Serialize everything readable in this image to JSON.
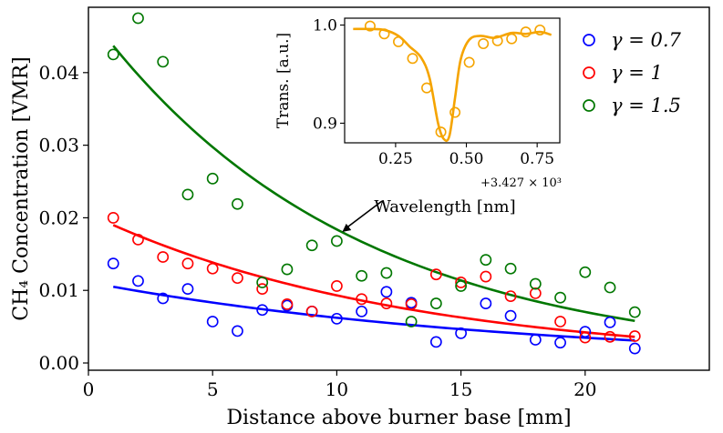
{
  "chart_data": [
    {
      "type": "scatter",
      "xlabel": "Distance above burner base [mm]",
      "ylabel": "CH₄ Concentration [VMR]",
      "xlim": [
        0,
        25
      ],
      "ylim": [
        -0.001,
        0.049
      ],
      "xticks": [
        0,
        5,
        10,
        15,
        20
      ],
      "yticks": [
        0.0,
        0.01,
        0.02,
        0.03,
        0.04
      ],
      "ytick_labels": [
        "0.00",
        "0.01",
        "0.02",
        "0.03",
        "0.04"
      ],
      "grid": false,
      "legend": "top-right",
      "series": [
        {
          "name": "γ = 0.7",
          "color": "#0000ff",
          "x": [
            1,
            2,
            3,
            4,
            5,
            6,
            7,
            8,
            9,
            10,
            11,
            12,
            13,
            14,
            15,
            16,
            17,
            18,
            19,
            20,
            21,
            22
          ],
          "values": [
            0.0137,
            0.0113,
            0.0089,
            0.0102,
            0.0057,
            0.0044,
            0.0073,
            0.0079,
            0.0071,
            0.0061,
            0.0071,
            0.0098,
            0.0083,
            0.0029,
            0.0041,
            0.0082,
            0.0065,
            0.0032,
            0.0028,
            0.0043,
            0.0056,
            0.002
          ],
          "fit_x": [
            1,
            22
          ],
          "fit_y": [
            0.0105,
            0.0031
          ]
        },
        {
          "name": "γ = 1",
          "color": "#ff0000",
          "x": [
            1,
            2,
            3,
            4,
            5,
            6,
            7,
            8,
            9,
            10,
            11,
            12,
            13,
            14,
            15,
            16,
            17,
            18,
            19,
            20,
            21,
            22
          ],
          "values": [
            0.02,
            0.017,
            0.0146,
            0.0137,
            0.013,
            0.0117,
            0.0102,
            0.0081,
            0.0071,
            0.0106,
            0.0088,
            0.0082,
            0.0081,
            0.0122,
            0.0111,
            0.0119,
            0.0092,
            0.0096,
            0.0057,
            0.0035,
            0.0036,
            0.0037
          ],
          "fit_x": [
            1,
            22
          ],
          "fit_y": [
            0.019,
            0.0036
          ]
        },
        {
          "name": "γ = 1.5",
          "color": "#007700",
          "x": [
            1,
            2,
            3,
            4,
            5,
            6,
            7,
            8,
            9,
            10,
            11,
            12,
            13,
            14,
            15,
            16,
            17,
            18,
            19,
            20,
            21,
            22
          ],
          "values": [
            0.0425,
            0.0475,
            0.0415,
            0.0232,
            0.0254,
            0.0219,
            0.0111,
            0.0129,
            0.0162,
            0.0168,
            0.012,
            0.0124,
            0.0057,
            0.0082,
            0.0106,
            0.0142,
            0.013,
            0.0109,
            0.009,
            0.0125,
            0.0104,
            0.007
          ],
          "fit_x": [
            1,
            22
          ],
          "fit_y": [
            0.0437,
            0.0058
          ]
        }
      ],
      "annotations": [
        {
          "text": "Wavelength [nm]",
          "points_to_x": 10,
          "points_to_y": 0.0168
        }
      ]
    },
    {
      "type": "scatter",
      "title": "",
      "ylabel": "Trans. [a.u.]",
      "xlabel": "",
      "x_offset_label": "+3.427 × 10³",
      "xlim": [
        0.07,
        0.83
      ],
      "ylim": [
        0.88,
        1.007
      ],
      "xticks": [
        0.25,
        0.5,
        0.75
      ],
      "xtick_labels": [
        "0.25",
        "0.50",
        "0.75"
      ],
      "yticks": [
        0.9,
        1.0
      ],
      "ytick_labels": [
        "0.9",
        "1.0"
      ],
      "series": [
        {
          "name": "",
          "color": "#f5a400",
          "x": [
            0.16,
            0.21,
            0.26,
            0.31,
            0.36,
            0.41,
            0.46,
            0.51,
            0.56,
            0.61,
            0.66,
            0.71,
            0.76
          ],
          "values": [
            0.999,
            0.991,
            0.983,
            0.966,
            0.936,
            0.891,
            0.911,
            0.962,
            0.981,
            0.984,
            0.986,
            0.993,
            0.995
          ],
          "fit_x": [
            0.1,
            0.16,
            0.21,
            0.26,
            0.3,
            0.34,
            0.37,
            0.4,
            0.42,
            0.44,
            0.46,
            0.48,
            0.51,
            0.55,
            0.6,
            0.66,
            0.71,
            0.76,
            0.8
          ],
          "fit_y": [
            0.996,
            0.996,
            0.995,
            0.989,
            0.978,
            0.967,
            0.946,
            0.9,
            0.884,
            0.887,
            0.926,
            0.965,
            0.985,
            0.989,
            0.987,
            0.992,
            0.991,
            0.993,
            0.99
          ]
        }
      ]
    }
  ]
}
